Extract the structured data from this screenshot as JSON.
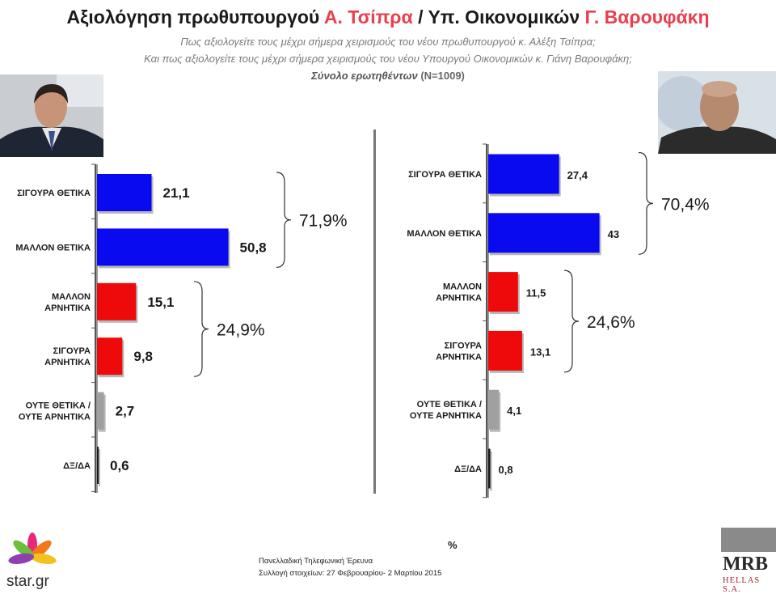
{
  "header": {
    "title_part1": "Αξιολόγηση πρωθυπουργού ",
    "title_name1": "Α. Τσίπρα",
    "title_part2": " / Υπ. Οικονομικών ",
    "title_name2": "Γ. Βαρουφάκη",
    "subtitle1": "Πως αξιολογείτε τους μέχρι σήμερα  χειρισμούς του νέου πρωθυπουργού κ. Αλέξη Τσίπρα;",
    "subtitle2": "Και πως αξιολογείτε  τους μέχρι σήμερα  χειρισμούς του νέου Υπουργού Οικονομικών κ. Γιάνη Βαρουφάκη;",
    "sample_label": "Σύνολο ερωτηθέντων",
    "sample_n": " (Ν=1009)"
  },
  "footer": {
    "percent_sign": "%",
    "line1": "Πανελλαδική  Τηλεφωνική Έρευνα",
    "line2": "Συλλογή στοιχείων: 27 Φεβρουαρίου- 2 Μαρτίου  2015",
    "left_logo": "star.gr",
    "right_logo": "MRB",
    "right_logo_sub": "HELLAS S.A."
  },
  "colors": {
    "positive": "#0a0af0",
    "negative": "#ee0a0a",
    "neutral": "#a0a0a0",
    "dk": "#1a1a1a",
    "title_accent": "#e8404e"
  },
  "chart_data": [
    {
      "type": "bar",
      "orientation": "horizontal",
      "subject": "Α. Τσίπρα",
      "categories": [
        [
          "ΣΙΓΟΥΡΑ ΘΕΤΙΚΑ"
        ],
        [
          "ΜΑΛΛΟΝ ΘΕΤΙΚΑ"
        ],
        [
          "ΜΑΛΛΟΝ",
          "ΑΡΝΗΤΙΚΑ"
        ],
        [
          "ΣΙΓΟΥΡΑ",
          "ΑΡΝΗΤΙΚΑ"
        ],
        [
          "ΟΥΤΕ ΘΕΤΙΚΑ /",
          "ΟΥΤΕ ΑΡΝΗΤΙΚΑ"
        ],
        [
          "ΔΞ/ΔΑ"
        ]
      ],
      "values": [
        21.1,
        50.8,
        15.1,
        9.8,
        2.7,
        0.6
      ],
      "value_labels": [
        "21,1",
        "50,8",
        "15,1",
        "9,8",
        "2,7",
        "0,6"
      ],
      "bar_colors": [
        "positive",
        "positive",
        "negative",
        "negative",
        "neutral",
        "dk"
      ],
      "groups": [
        {
          "label": "71,9%",
          "from": 0,
          "to": 1
        },
        {
          "label": "24,9%",
          "from": 2,
          "to": 3
        }
      ]
    },
    {
      "type": "bar",
      "orientation": "horizontal",
      "subject": "Γ. Βαρουφάκη",
      "categories": [
        [
          "ΣΙΓΟΥΡΑ ΘΕΤΙΚΑ"
        ],
        [
          "ΜΑΛΛΟΝ ΘΕΤΙΚΑ"
        ],
        [
          "ΜΑΛΛΟΝ",
          "ΑΡΝΗΤΙΚΑ"
        ],
        [
          "ΣΙΓΟΥΡΑ",
          "ΑΡΝΗΤΙΚΑ"
        ],
        [
          "ΟΥΤΕ ΘΕΤΙΚΑ /",
          "ΟΥΤΕ ΑΡΝΗΤΙΚΑ"
        ],
        [
          "ΔΞ/ΔΑ"
        ]
      ],
      "values": [
        27.4,
        43,
        11.5,
        13.1,
        4.1,
        0.8
      ],
      "value_labels": [
        "27,4",
        "43",
        "11,5",
        "13,1",
        "4,1",
        "0,8"
      ],
      "bar_colors": [
        "positive",
        "positive",
        "negative",
        "negative",
        "neutral",
        "dk"
      ],
      "groups": [
        {
          "label": "70,4%",
          "from": 0,
          "to": 1
        },
        {
          "label": "24,6%",
          "from": 2,
          "to": 3
        }
      ]
    }
  ]
}
